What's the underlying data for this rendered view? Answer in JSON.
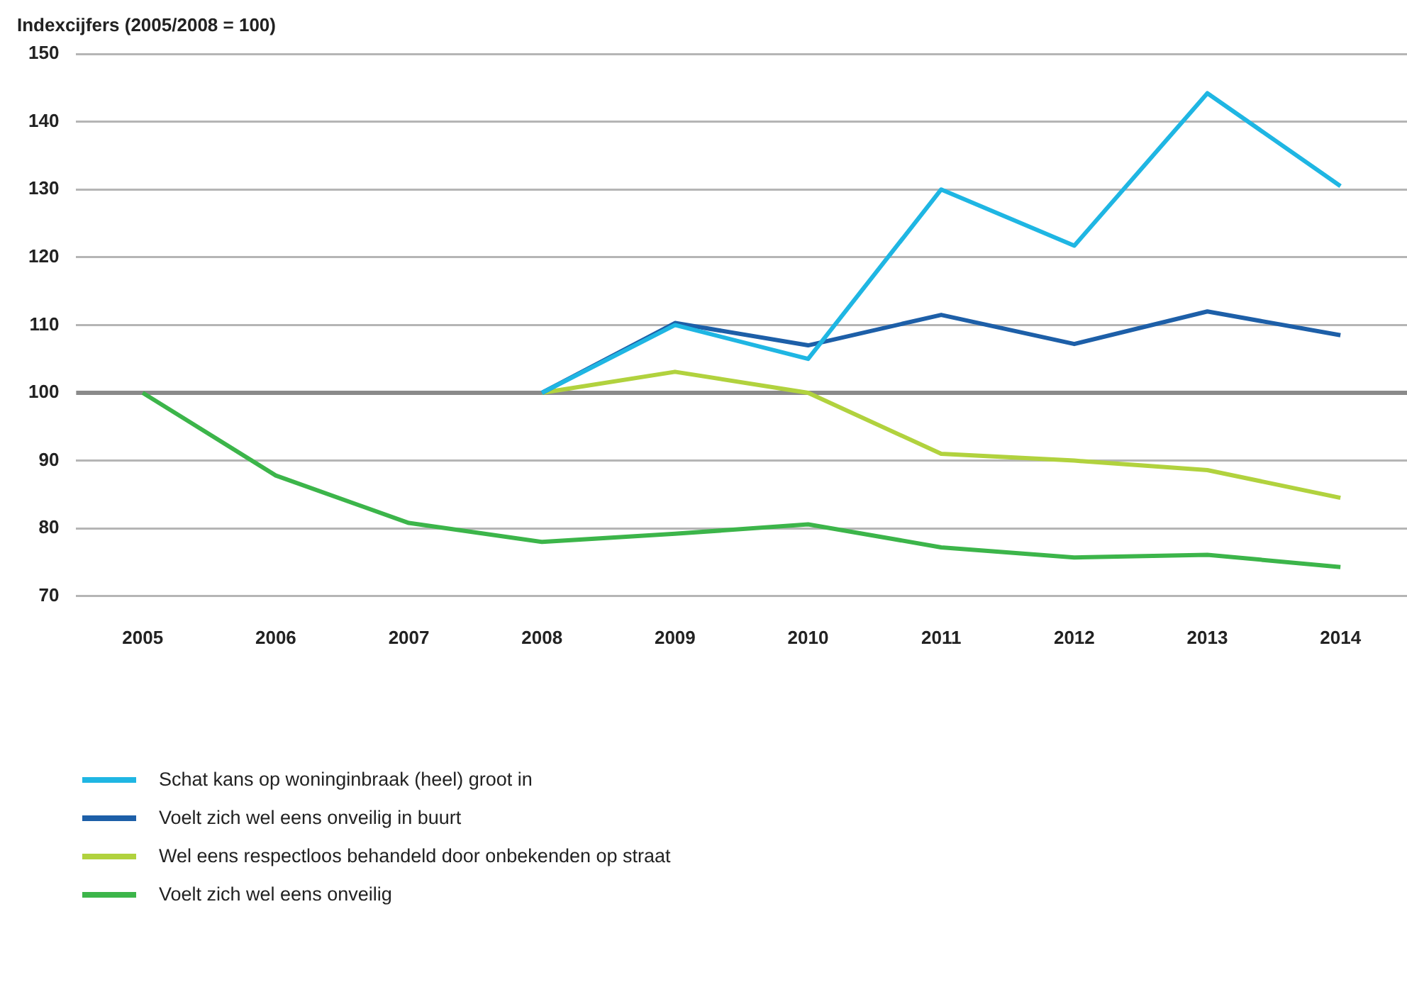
{
  "chart_data": {
    "type": "line",
    "ylabel": "Indexcijfers (2005/2008 = 100)",
    "categories": [
      "2005",
      "2006",
      "2007",
      "2008",
      "2009",
      "2010",
      "2011",
      "2012",
      "2013",
      "2014"
    ],
    "series": [
      {
        "name": "Schat kans op woninginbraak (heel) groot in",
        "color": "#1fb6e3",
        "values": [
          null,
          null,
          null,
          100,
          110,
          105,
          130,
          121.7,
          144.2,
          130.5
        ]
      },
      {
        "name": "Voelt zich wel eens onveilig in buurt",
        "color": "#1d5fa8",
        "values": [
          null,
          null,
          null,
          100,
          110.3,
          107,
          111.5,
          107.2,
          112,
          108.5
        ]
      },
      {
        "name": "Wel eens respectloos behandeld door onbekenden op straat",
        "color": "#b1d23e",
        "values": [
          null,
          null,
          null,
          100,
          103.1,
          100,
          91,
          90,
          88.6,
          84.5
        ]
      },
      {
        "name": "Voelt zich wel eens onveilig",
        "color": "#3cb54a",
        "values": [
          100,
          87.8,
          80.8,
          78,
          79.2,
          80.6,
          77.2,
          75.7,
          76.1,
          74.3
        ]
      }
    ],
    "ylim": [
      70,
      150
    ],
    "yticks": [
      70,
      80,
      90,
      100,
      110,
      120,
      130,
      140,
      150
    ],
    "grid": "y",
    "ref_lines": [
      {
        "axis": "y",
        "value": 100,
        "color": "#8a8a8a"
      }
    ],
    "legend": "bottom left",
    "marker": "none",
    "line_style": "solid"
  }
}
